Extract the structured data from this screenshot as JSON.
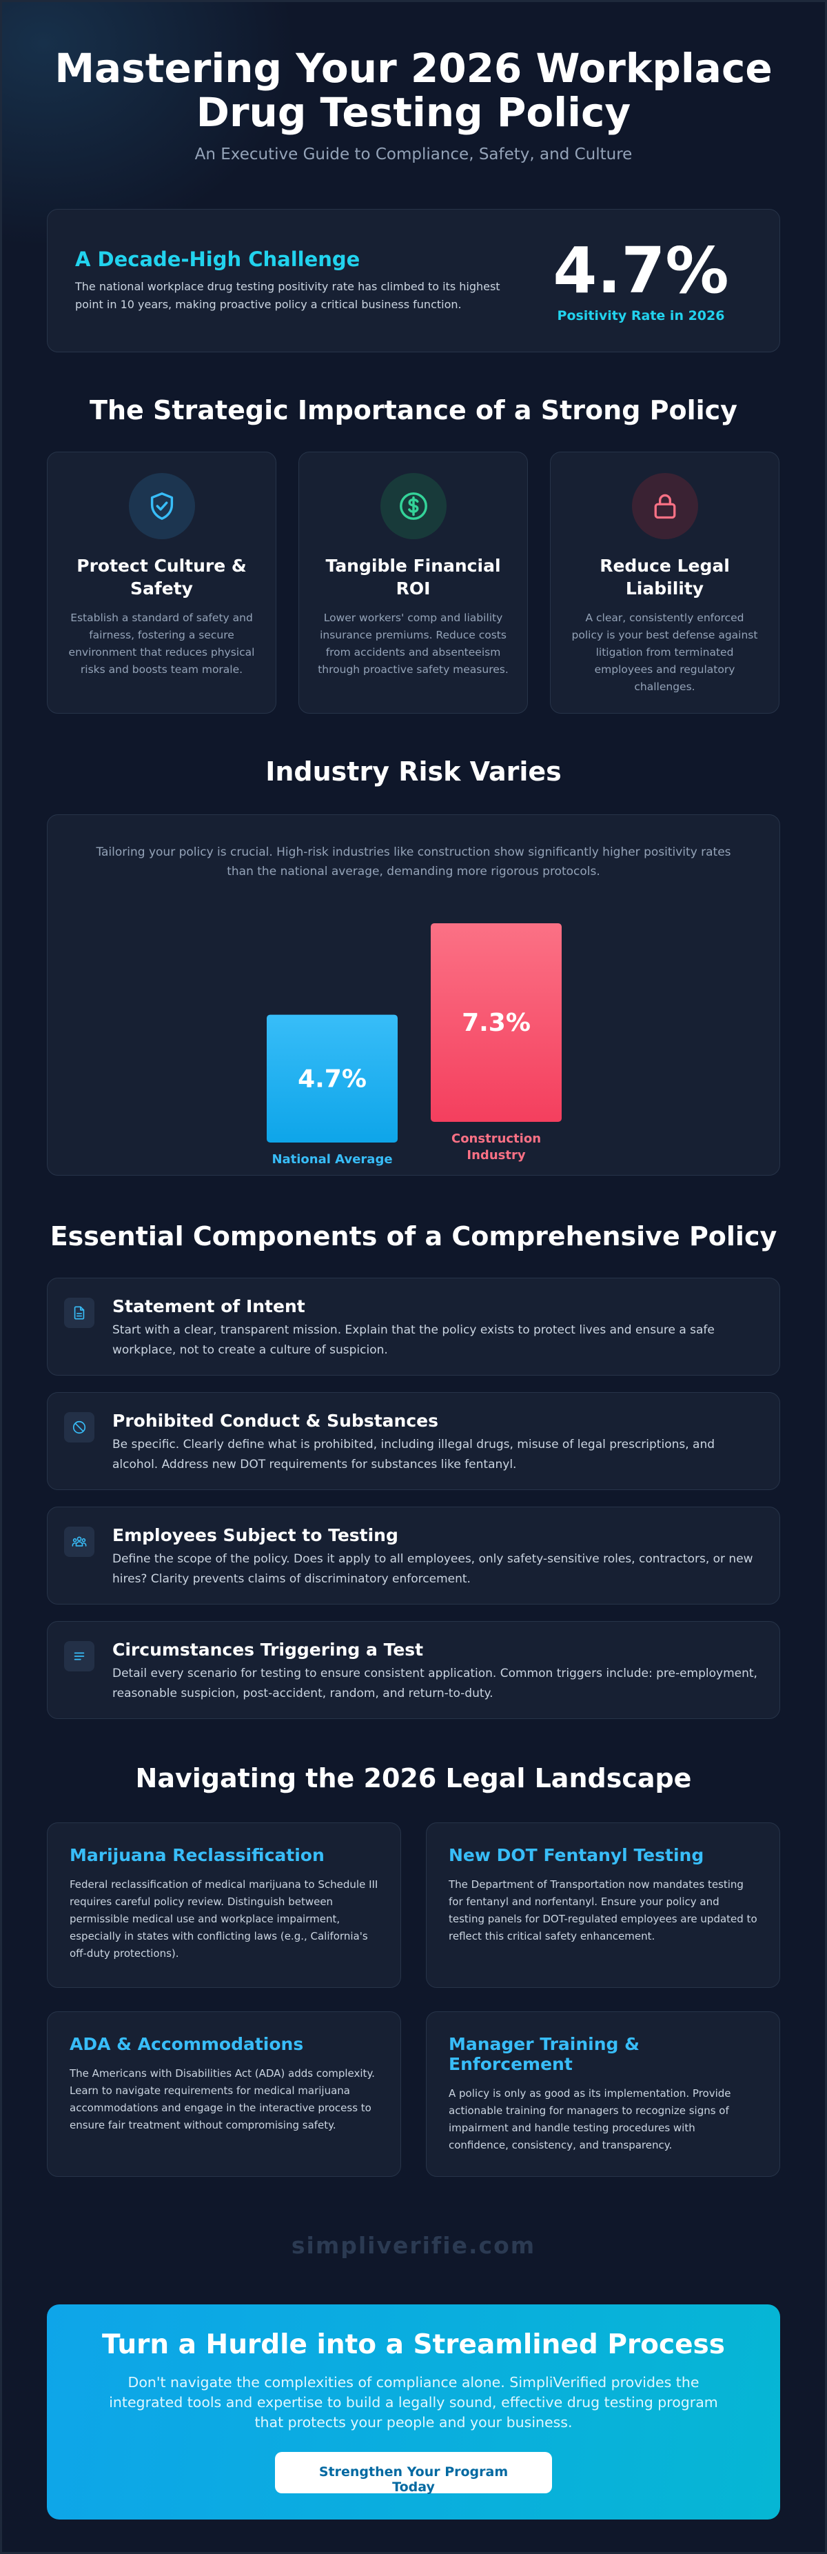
{
  "header": {
    "title_line1": "Mastering Your 2026 Workplace",
    "title_line2": "Drug Testing Policy",
    "subtitle": "An Executive Guide to Compliance, Safety, and Culture"
  },
  "challenge": {
    "title": "A Decade-High Challenge",
    "text": "The national workplace drug testing positivity rate has climbed to its highest point in 10 years, making proactive policy a critical business function.",
    "stat_value": "4.7%",
    "stat_label": "Positivity Rate in 2026"
  },
  "strategic": {
    "title": "The Strategic Importance of a Strong Policy",
    "pillars": [
      {
        "icon": "shield-check-icon",
        "color": "#38bdf8",
        "title_line1": "Protect Culture &",
        "title_line2": "Safety",
        "text": "Establish a standard of safety and fairness, fostering a secure environment that reduces physical risks and boosts team morale."
      },
      {
        "icon": "dollar-icon",
        "color": "#34d399",
        "title_line1": "Tangible Financial",
        "title_line2": "ROI",
        "text": "Lower workers' comp and liability insurance premiums. Reduce costs from accidents and absenteeism through proactive safety measures."
      },
      {
        "icon": "lock-icon",
        "color": "#fb7185",
        "title_line1": "Reduce Legal",
        "title_line2": "Liability",
        "text": "A clear, consistently enforced policy is your best defense against litigation from terminated employees and regulatory challenges."
      }
    ]
  },
  "risk": {
    "title": "Industry Risk Varies",
    "text": "Tailoring your policy is crucial. High-risk industries like construction show significantly higher positivity rates than the national average, demanding more rigorous protocols."
  },
  "chart_data": {
    "type": "bar",
    "categories": [
      "National Average",
      "Construction Industry"
    ],
    "values": [
      4.7,
      7.3
    ],
    "data_labels": [
      "4.7%",
      "7.3%"
    ],
    "category_label_lines": [
      [
        "National Average"
      ],
      [
        "Construction",
        "Industry"
      ]
    ],
    "colors": [
      "#38bdf8",
      "#fb7185"
    ],
    "label_colors": [
      "#38bdf8",
      "#fb7185"
    ],
    "title": "",
    "xlabel": "",
    "ylabel": "",
    "ylim": [
      0,
      7.3
    ],
    "grid": false
  },
  "components": {
    "title": "Essential Components of a Comprehensive Policy",
    "items": [
      {
        "icon": "document-icon",
        "title": "Statement of Intent",
        "text": "Start with a clear, transparent mission. Explain that the policy exists to protect lives and ensure a safe workplace, not to create a culture of suspicion."
      },
      {
        "icon": "prohibited-icon",
        "title": "Prohibited Conduct & Substances",
        "text": "Be specific. Clearly define what is prohibited, including illegal drugs, misuse of legal prescriptions, and alcohol. Address new DOT requirements for substances like fentanyl."
      },
      {
        "icon": "people-icon",
        "title": "Employees Subject to Testing",
        "text": "Define the scope of the policy. Does it apply to all employees, only safety-sensitive roles, contractors, or new hires? Clarity prevents claims of discriminatory enforcement."
      },
      {
        "icon": "list-icon",
        "title": "Circumstances Triggering a Test",
        "text": "Detail every scenario for testing to ensure consistent application. Common triggers include: pre-employment, reasonable suspicion, post-accident, random, and return-to-duty."
      }
    ]
  },
  "legal": {
    "title": "Navigating the 2026 Legal Landscape",
    "cards": [
      {
        "title": "Marijuana Reclassification",
        "text": "Federal reclassification of medical marijuana to Schedule III requires careful policy review. Distinguish between permissible medical use and workplace impairment, especially in states with conflicting laws (e.g., California's off-duty protections)."
      },
      {
        "title": "New DOT Fentanyl Testing",
        "text": "The Department of Transportation now mandates testing for fentanyl and norfentanyl. Ensure your policy and testing panels for DOT-regulated employees are updated to reflect this critical safety enhancement."
      },
      {
        "title": "ADA & Accommodations",
        "text": "The Americans with Disabilities Act (ADA) adds complexity. Learn to navigate requirements for medical marijuana accommodations and engage in the interactive process to ensure fair treatment without compromising safety."
      },
      {
        "title": "Manager Training & Enforcement",
        "text": "A policy is only as good as its implementation. Provide actionable training for managers to recognize signs of impairment and handle testing procedures with confidence, consistency, and transparency."
      }
    ]
  },
  "brand": {
    "text": "simpliverifie.com"
  },
  "cta": {
    "title": "Turn a Hurdle into a Streamlined Process",
    "text": "Don't navigate the complexities of compliance alone. SimpliVerified provides the integrated tools and expertise to build a legally sound, effective drug testing program that protects your people and your business.",
    "button_label": "Strengthen Your Program Today"
  }
}
